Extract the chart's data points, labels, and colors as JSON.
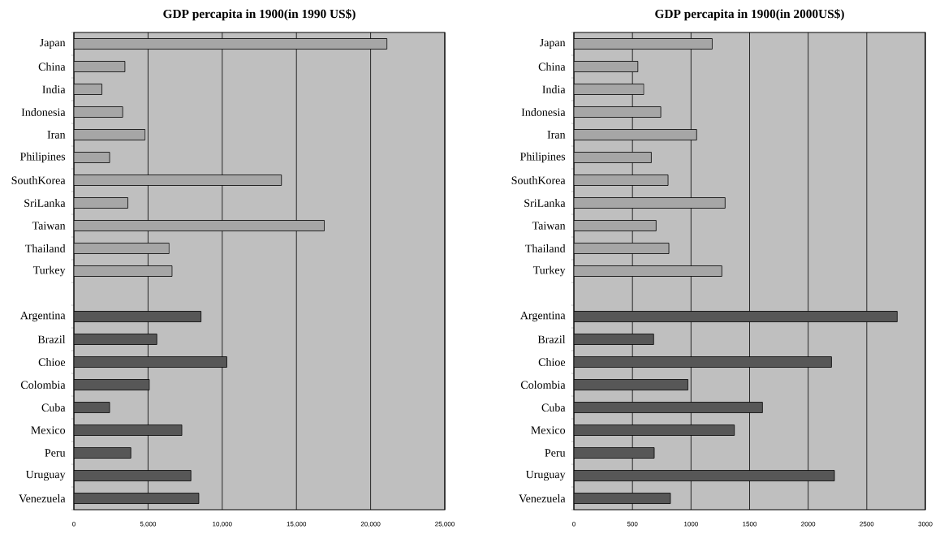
{
  "chart_data": [
    {
      "type": "bar",
      "orientation": "horizontal",
      "title": "GDP  percapita  in 1900(in 1990 US$)",
      "categories": [
        "Japan",
        "China",
        "India",
        "Indonesia",
        "Iran",
        "Philipines",
        "SouthKorea",
        "SriLanka",
        "Taiwan",
        "Thailand",
        "Turkey",
        null,
        "Argentina",
        "Brazil",
        "Chioe",
        "Colombia",
        "Cuba",
        "Mexico",
        "Peru",
        "Uruguay",
        "Venezuela"
      ],
      "values": [
        21100,
        3440,
        1890,
        3290,
        4800,
        2410,
        13990,
        3640,
        16880,
        6420,
        6620,
        null,
        8570,
        5590,
        10310,
        5090,
        2410,
        7280,
        3840,
        7890,
        8420
      ],
      "colors": [
        "#a6a6a6",
        "#a6a6a6",
        "#a6a6a6",
        "#a6a6a6",
        "#a6a6a6",
        "#a6a6a6",
        "#a6a6a6",
        "#a6a6a6",
        "#a6a6a6",
        "#a6a6a6",
        "#a6a6a6",
        null,
        "#575757",
        "#575757",
        "#575757",
        "#575757",
        "#575757",
        "#575757",
        "#575757",
        "#575757",
        "#575757"
      ],
      "xlim": [
        0,
        25000
      ],
      "xticks": [
        0,
        {
          "value": 5000,
          "label": "5,000"
        },
        {
          "value": 10000,
          "label": "10,000"
        },
        {
          "value": 15000,
          "label": "15,000"
        },
        {
          "value": 20000,
          "label": "20,000"
        },
        {
          "value": 25000,
          "label": "25,000"
        }
      ],
      "grid": "x"
    },
    {
      "type": "bar",
      "orientation": "horizontal",
      "title": "GDP  percapita  in 1900(in 2000US$)",
      "categories": [
        "Japan",
        "China",
        "India",
        "Indonesia",
        "Iran",
        "Philipines",
        "SouthKorea",
        "SriLanka",
        "Taiwan",
        "Thailand",
        "Turkey",
        null,
        "Argentina",
        "Brazil",
        "Chioe",
        "Colombia",
        "Cuba",
        "Mexico",
        "Peru",
        "Uruguay",
        "Venezuela"
      ],
      "values": [
        1181,
        546,
        597,
        742,
        1048,
        661,
        804,
        1291,
        702,
        811,
        1263,
        null,
        2760,
        681,
        2199,
        974,
        1610,
        1370,
        686,
        2224,
        824
      ],
      "colors": [
        "#a6a6a6",
        "#a6a6a6",
        "#a6a6a6",
        "#a6a6a6",
        "#a6a6a6",
        "#a6a6a6",
        "#a6a6a6",
        "#a6a6a6",
        "#a6a6a6",
        "#a6a6a6",
        "#a6a6a6",
        null,
        "#575757",
        "#575757",
        "#575757",
        "#575757",
        "#575757",
        "#575757",
        "#575757",
        "#575757",
        "#575757"
      ],
      "xlim": [
        0,
        3000
      ],
      "xticks": [
        0,
        500,
        1000,
        1500,
        2000,
        2500,
        3000
      ],
      "grid": "x"
    }
  ]
}
